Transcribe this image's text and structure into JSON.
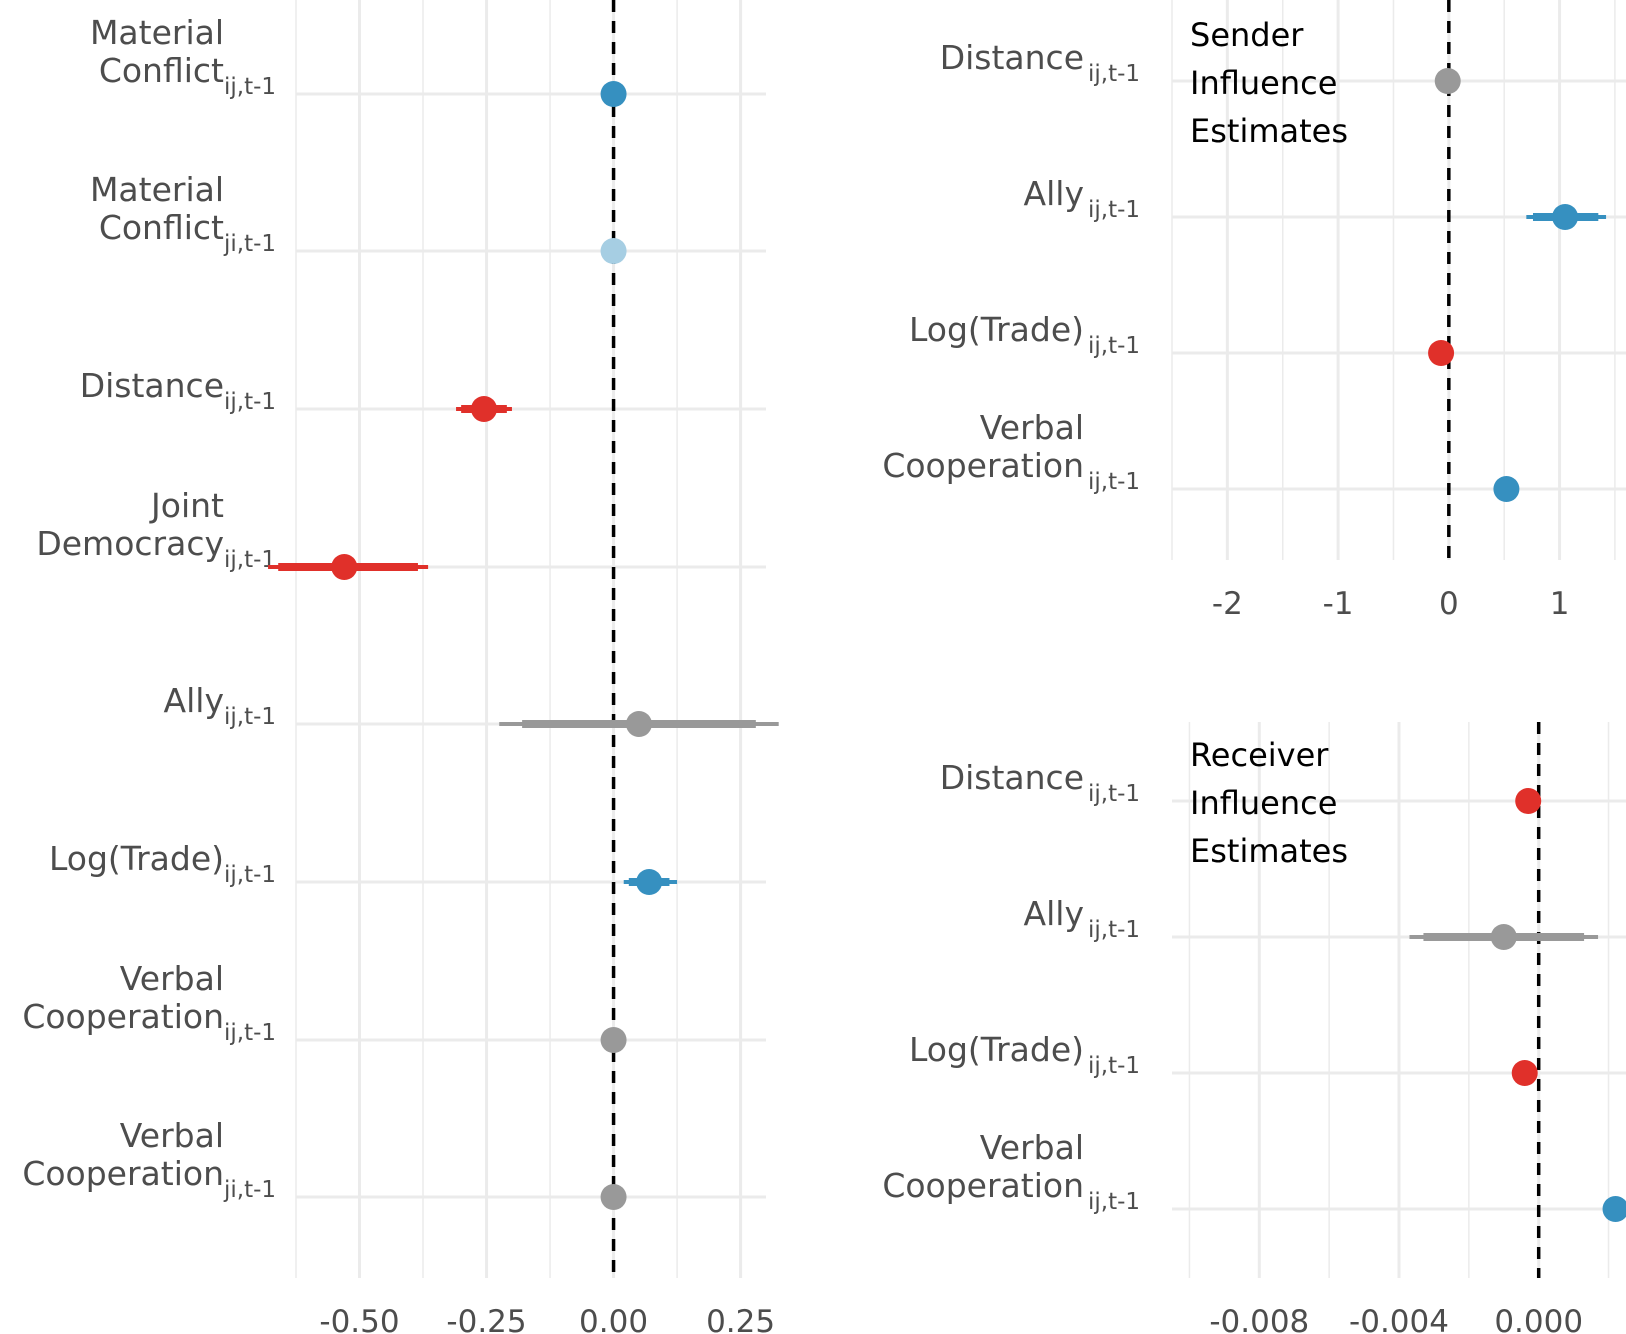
{
  "colors": {
    "positive_sig": "#3690c0",
    "positive_weak": "#a6cee3",
    "negative_sig": "#e0302a",
    "not_sig": "#999999",
    "grid": "#ebebeb",
    "zero_line": "#000000"
  },
  "chart_data": [
    {
      "type": "scatter",
      "subtype": "coefficient-plot",
      "title": "",
      "xlabel": "",
      "ylabel": "",
      "xlim": [
        -0.625,
        0.3
      ],
      "xticks": [
        -0.5,
        -0.25,
        0.0,
        0.25
      ],
      "xtick_labels": [
        "-0.50",
        "-0.25",
        "0.00",
        "0.25"
      ],
      "zero_line": true,
      "grid": true,
      "rows": [
        {
          "label_lines": [
            "Material",
            "Conflict"
          ],
          "subscript": "ij,t-1",
          "estimate": 0.0,
          "ci95": [
            -0.003,
            0.003
          ],
          "ci90": [
            -0.002,
            0.002
          ],
          "color_key": "positive_sig"
        },
        {
          "label_lines": [
            "Material",
            "Conflict"
          ],
          "subscript": "ji,t-1",
          "estimate": 0.0,
          "ci95": [
            -0.003,
            0.003
          ],
          "ci90": [
            -0.002,
            0.002
          ],
          "color_key": "positive_weak"
        },
        {
          "label_lines": [
            "Distance"
          ],
          "subscript": "ij,t-1",
          "estimate": -0.255,
          "ci95": [
            -0.31,
            -0.2
          ],
          "ci90": [
            -0.3,
            -0.21
          ],
          "color_key": "negative_sig"
        },
        {
          "label_lines": [
            "Joint",
            "Democracy"
          ],
          "subscript": "ij,t-1",
          "estimate": -0.53,
          "ci95": [
            -0.68,
            -0.365
          ],
          "ci90": [
            -0.66,
            -0.385
          ],
          "color_key": "negative_sig"
        },
        {
          "label_lines": [
            "Ally"
          ],
          "subscript": "ij,t-1",
          "estimate": 0.05,
          "ci95": [
            -0.225,
            0.325
          ],
          "ci90": [
            -0.18,
            0.28
          ],
          "color_key": "not_sig"
        },
        {
          "label_lines": [
            "Log(Trade)"
          ],
          "subscript": "ij,t-1",
          "estimate": 0.07,
          "ci95": [
            0.02,
            0.125
          ],
          "ci90": [
            0.03,
            0.11
          ],
          "color_key": "positive_sig"
        },
        {
          "label_lines": [
            "Verbal",
            "Cooperation"
          ],
          "subscript": "ij,t-1",
          "estimate": 0.0,
          "ci95": [
            -0.003,
            0.003
          ],
          "ci90": [
            -0.002,
            0.002
          ],
          "color_key": "not_sig"
        },
        {
          "label_lines": [
            "Verbal",
            "Cooperation"
          ],
          "subscript": "ji,t-1",
          "estimate": 0.0,
          "ci95": [
            -0.003,
            0.003
          ],
          "ci90": [
            -0.002,
            0.002
          ],
          "color_key": "not_sig"
        }
      ]
    },
    {
      "type": "scatter",
      "subtype": "coefficient-plot",
      "title": "Sender Influence Estimates",
      "title_lines": [
        "Sender",
        "Influence",
        "Estimates"
      ],
      "xlabel": "",
      "ylabel": "",
      "xlim": [
        -2.5,
        1.6
      ],
      "xticks": [
        -2,
        -1,
        0,
        1
      ],
      "xtick_labels": [
        "-2",
        "-1",
        "0",
        "1"
      ],
      "zero_line": true,
      "grid": true,
      "rows": [
        {
          "label_lines": [
            "Distance"
          ],
          "subscript": "ij,t-1",
          "estimate": -0.01,
          "ci95": [
            -0.02,
            0.0
          ],
          "ci90": [
            -0.015,
            -0.005
          ],
          "color_key": "not_sig"
        },
        {
          "label_lines": [
            "Ally"
          ],
          "subscript": "ij,t-1",
          "estimate": 1.05,
          "ci95": [
            0.7,
            1.42
          ],
          "ci90": [
            0.76,
            1.35
          ],
          "color_key": "positive_sig"
        },
        {
          "label_lines": [
            "Log(Trade)"
          ],
          "subscript": "ij,t-1",
          "estimate": -0.07,
          "ci95": [
            -0.08,
            -0.06
          ],
          "ci90": [
            -0.075,
            -0.065
          ],
          "color_key": "negative_sig"
        },
        {
          "label_lines": [
            "Verbal",
            "Cooperation"
          ],
          "subscript": "ij,t-1",
          "estimate": 0.52,
          "ci95": [
            0.51,
            0.53
          ],
          "ci90": [
            0.515,
            0.525
          ],
          "color_key": "positive_sig"
        }
      ]
    },
    {
      "type": "scatter",
      "subtype": "coefficient-plot",
      "title": "Receiver Influence Estimates",
      "title_lines": [
        "Receiver",
        "Influence",
        "Estimates"
      ],
      "xlabel": "",
      "ylabel": "",
      "xlim": [
        -0.0105,
        0.0025
      ],
      "xticks": [
        -0.008,
        -0.004,
        0.0
      ],
      "xtick_labels": [
        "-0.008",
        "-0.004",
        "0.000"
      ],
      "zero_line": true,
      "grid": true,
      "rows": [
        {
          "label_lines": [
            "Distance"
          ],
          "subscript": "ij,t-1",
          "estimate": -0.0003,
          "ci95": [
            -0.0004,
            -0.0002
          ],
          "ci90": [
            -0.00035,
            -0.00025
          ],
          "color_key": "negative_sig"
        },
        {
          "label_lines": [
            "Ally"
          ],
          "subscript": "ij,t-1",
          "estimate": -0.001,
          "ci95": [
            -0.0037,
            0.0017
          ],
          "ci90": [
            -0.0033,
            0.0013
          ],
          "color_key": "not_sig"
        },
        {
          "label_lines": [
            "Log(Trade)"
          ],
          "subscript": "ij,t-1",
          "estimate": -0.0004,
          "ci95": [
            -0.0005,
            -0.0003
          ],
          "ci90": [
            -0.00045,
            -0.00035
          ],
          "color_key": "negative_sig"
        },
        {
          "label_lines": [
            "Verbal",
            "Cooperation"
          ],
          "subscript": "ij,t-1",
          "estimate": 0.0022,
          "ci95": [
            0.0021,
            0.0023
          ],
          "ci90": [
            0.00215,
            0.00225
          ],
          "color_key": "positive_sig"
        }
      ]
    }
  ]
}
